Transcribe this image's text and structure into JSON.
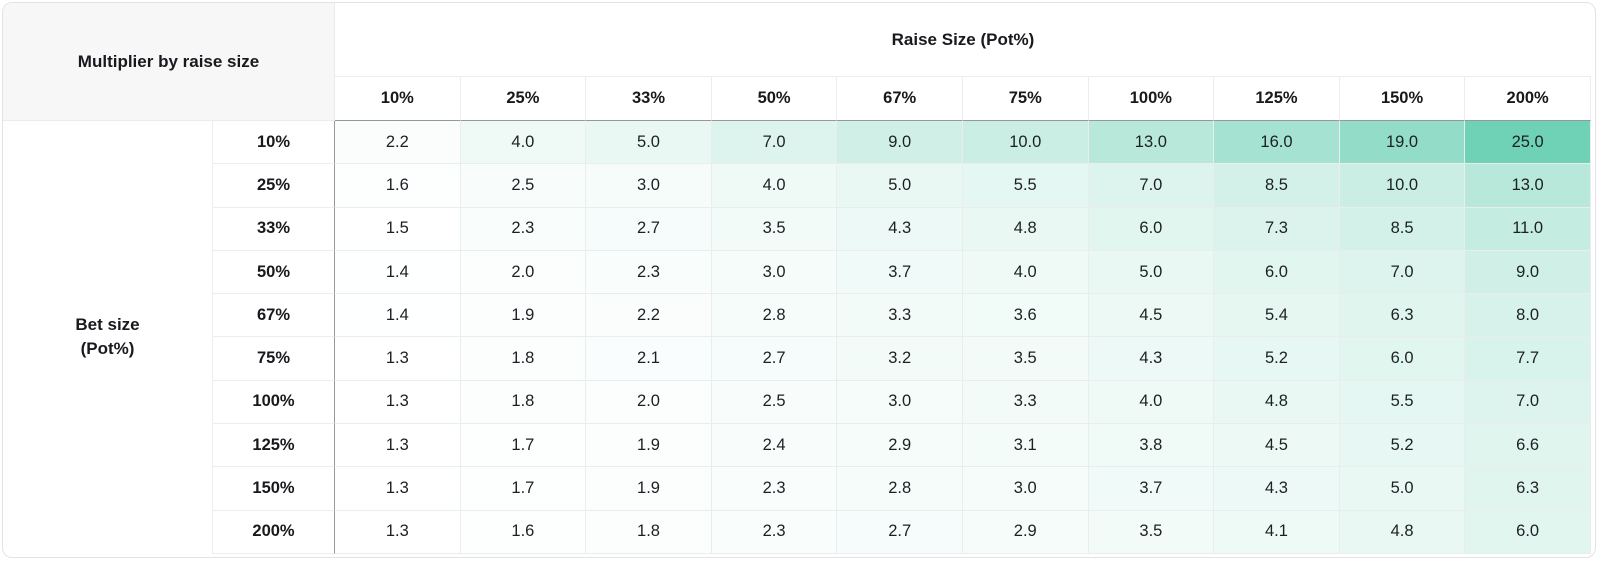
{
  "table": {
    "corner_title": "Multiplier by raise size",
    "column_group_title": "Raise Size (Pot%)",
    "row_group_title_line1": "Bet size",
    "row_group_title_line2": "(Pot%)",
    "columns": [
      "10%",
      "25%",
      "33%",
      "50%",
      "67%",
      "75%",
      "100%",
      "125%",
      "150%",
      "200%"
    ],
    "rows": [
      {
        "label": "10%",
        "values": [
          2.2,
          4.0,
          5.0,
          7.0,
          9.0,
          10.0,
          13.0,
          16.0,
          19.0,
          25.0
        ]
      },
      {
        "label": "25%",
        "values": [
          1.6,
          2.5,
          3.0,
          4.0,
          5.0,
          5.5,
          7.0,
          8.5,
          10.0,
          13.0
        ]
      },
      {
        "label": "33%",
        "values": [
          1.5,
          2.3,
          2.7,
          3.5,
          4.3,
          4.8,
          6.0,
          7.3,
          8.5,
          11.0
        ]
      },
      {
        "label": "50%",
        "values": [
          1.4,
          2.0,
          2.3,
          3.0,
          3.7,
          4.0,
          5.0,
          6.0,
          7.0,
          9.0
        ]
      },
      {
        "label": "67%",
        "values": [
          1.4,
          1.9,
          2.2,
          2.8,
          3.3,
          3.6,
          4.5,
          5.4,
          6.3,
          8.0
        ]
      },
      {
        "label": "75%",
        "values": [
          1.3,
          1.8,
          2.1,
          2.7,
          3.2,
          3.5,
          4.3,
          5.2,
          6.0,
          7.7
        ]
      },
      {
        "label": "100%",
        "values": [
          1.3,
          1.8,
          2.0,
          2.5,
          3.0,
          3.3,
          4.0,
          4.8,
          5.5,
          7.0
        ]
      },
      {
        "label": "125%",
        "values": [
          1.3,
          1.7,
          1.9,
          2.4,
          2.9,
          3.1,
          3.8,
          4.5,
          5.2,
          6.6
        ]
      },
      {
        "label": "150%",
        "values": [
          1.3,
          1.7,
          1.9,
          2.3,
          2.8,
          3.0,
          3.7,
          4.3,
          5.0,
          6.3
        ]
      },
      {
        "label": "200%",
        "values": [
          1.3,
          1.6,
          1.8,
          2.3,
          2.7,
          2.9,
          3.5,
          4.1,
          4.8,
          6.0
        ]
      }
    ],
    "value_decimals": 1
  },
  "heatmap": {
    "min": 1.3,
    "max": 25.0,
    "low_color": "#ffffff",
    "high_color": "#6fd1b5"
  },
  "chart_data": {
    "type": "heatmap",
    "title": "Multiplier by raise size",
    "xlabel": "Raise Size (Pot%)",
    "ylabel": "Bet size (Pot%)",
    "x_categories": [
      "10%",
      "25%",
      "33%",
      "50%",
      "67%",
      "75%",
      "100%",
      "125%",
      "150%",
      "200%"
    ],
    "y_categories": [
      "10%",
      "25%",
      "33%",
      "50%",
      "67%",
      "75%",
      "100%",
      "125%",
      "150%",
      "200%"
    ],
    "values": [
      [
        2.2,
        4.0,
        5.0,
        7.0,
        9.0,
        10.0,
        13.0,
        16.0,
        19.0,
        25.0
      ],
      [
        1.6,
        2.5,
        3.0,
        4.0,
        5.0,
        5.5,
        7.0,
        8.5,
        10.0,
        13.0
      ],
      [
        1.5,
        2.3,
        2.7,
        3.5,
        4.3,
        4.8,
        6.0,
        7.3,
        8.5,
        11.0
      ],
      [
        1.4,
        2.0,
        2.3,
        3.0,
        3.7,
        4.0,
        5.0,
        6.0,
        7.0,
        9.0
      ],
      [
        1.4,
        1.9,
        2.2,
        2.8,
        3.3,
        3.6,
        4.5,
        5.4,
        6.3,
        8.0
      ],
      [
        1.3,
        1.8,
        2.1,
        2.7,
        3.2,
        3.5,
        4.3,
        5.2,
        6.0,
        7.7
      ],
      [
        1.3,
        1.8,
        2.0,
        2.5,
        3.0,
        3.3,
        4.0,
        4.8,
        5.5,
        7.0
      ],
      [
        1.3,
        1.7,
        1.9,
        2.4,
        2.9,
        3.1,
        3.8,
        4.5,
        5.2,
        6.6
      ],
      [
        1.3,
        1.7,
        1.9,
        2.3,
        2.8,
        3.0,
        3.7,
        4.3,
        5.0,
        6.3
      ],
      [
        1.3,
        1.6,
        1.8,
        2.3,
        2.7,
        2.9,
        3.5,
        4.1,
        4.8,
        6.0
      ]
    ],
    "color_scale": {
      "min_value": 1.3,
      "max_value": 25.0,
      "min_color": "#ffffff",
      "max_color": "#6fd1b5"
    },
    "grid": true,
    "legend": false
  }
}
